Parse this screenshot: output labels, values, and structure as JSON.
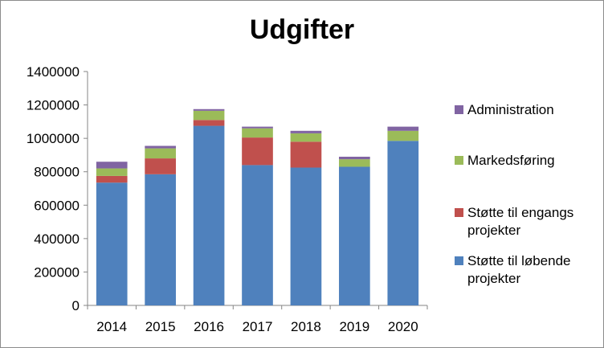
{
  "chart_data": {
    "type": "bar",
    "stacked": true,
    "title": "Udgifter",
    "categories": [
      "2014",
      "2015",
      "2016",
      "2017",
      "2018",
      "2019",
      "2020"
    ],
    "series": [
      {
        "name": "Støtte til løbende projekter",
        "color": "#4f81bd",
        "values": [
          735000,
          785000,
          1075000,
          840000,
          825000,
          830000,
          985000
        ]
      },
      {
        "name": "Støtte til engangs projekter",
        "color": "#c0504d",
        "values": [
          40000,
          95000,
          35000,
          165000,
          155000,
          0,
          0
        ]
      },
      {
        "name": "Markedsføring",
        "color": "#9bbb59",
        "values": [
          45000,
          60000,
          55000,
          55000,
          50000,
          45000,
          60000
        ]
      },
      {
        "name": "Administration",
        "color": "#8064a2",
        "values": [
          40000,
          15000,
          10000,
          10000,
          15000,
          15000,
          25000
        ]
      }
    ],
    "y_ticks": [
      "0",
      "200000",
      "400000",
      "600000",
      "800000",
      "1000000",
      "1200000",
      "1400000"
    ],
    "ylim": [
      0,
      1400000
    ],
    "legend_position": "right",
    "legend_order": [
      3,
      2,
      1,
      0
    ],
    "grid": false
  }
}
